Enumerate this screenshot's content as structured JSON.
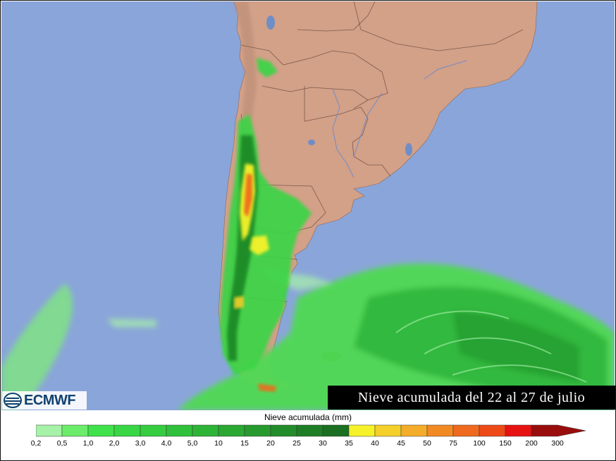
{
  "map": {
    "title": "Nieve acumulada del 22 al 27 de julio",
    "logo_text": "ECMWF",
    "colors": {
      "ocean": "#8aa5d9",
      "land": "#d3a088"
    }
  },
  "legend": {
    "title": "Nieve acumulada (mm)",
    "tick_labels": [
      "0,2",
      "0,5",
      "1,0",
      "2,0",
      "3,0",
      "4,0",
      "5,0",
      "10",
      "15",
      "20",
      "25",
      "30",
      "35",
      "40",
      "45",
      "50",
      "75",
      "100",
      "150",
      "200",
      "300"
    ],
    "colors": [
      "#a6f2a8",
      "#6cec6b",
      "#3fe24a",
      "#38d645",
      "#35cc40",
      "#31c03b",
      "#2db436",
      "#2aa832",
      "#279a2e",
      "#238c2a",
      "#1e7e26",
      "#1b6f21",
      "#f6f22a",
      "#f5cf2a",
      "#f4ad2a",
      "#f28a24",
      "#ef6a1e",
      "#ee4a17",
      "#e61212",
      "#9a0d0d"
    ]
  }
}
